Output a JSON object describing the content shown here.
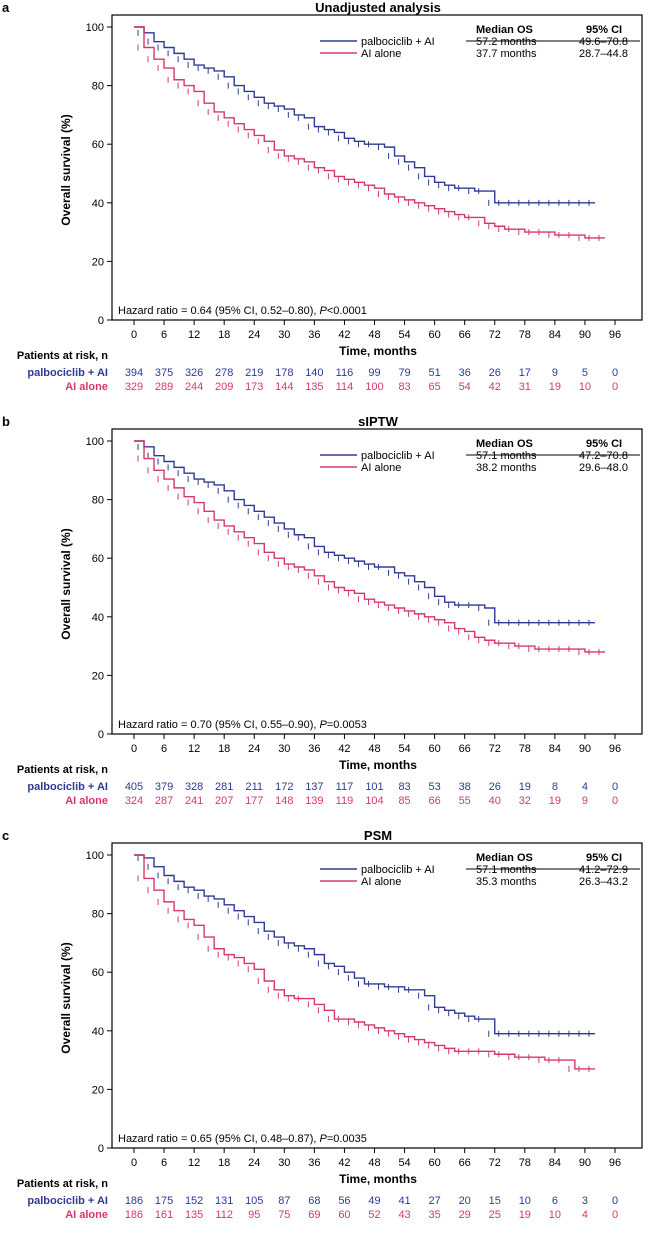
{
  "colors": {
    "palbo": "#2e3b93",
    "ai": "#d6386b",
    "axis": "#000000"
  },
  "common": {
    "xlabel": "Time, months",
    "ylabel": "Overall survival (%)",
    "x_ticks": [
      0,
      6,
      12,
      18,
      24,
      30,
      36,
      42,
      48,
      54,
      60,
      66,
      72,
      78,
      84,
      90,
      96
    ],
    "y_ticks": [
      0,
      20,
      40,
      60,
      80,
      100
    ],
    "risk_header": "Patients at risk, n",
    "table_headers": [
      "Median OS",
      "95% CI"
    ],
    "series_names": [
      "palbociclib + AI",
      "AI alone"
    ]
  },
  "chart_data": [
    {
      "type": "line",
      "letter": "a",
      "title": "Unadjusted analysis",
      "xlabel": "Time, months",
      "ylabel": "Overall survival (%)",
      "xlim": [
        0,
        96
      ],
      "ylim": [
        0,
        100
      ],
      "median_table": [
        {
          "name": "palbociclib + AI",
          "median": "57.2 months",
          "ci": "49.6–70.8"
        },
        {
          "name": "AI alone",
          "median": "37.7 months",
          "ci": "28.7–44.8"
        }
      ],
      "hr_prefix": "Hazard ratio = 0.64 (95% CI, 0.52–0.80), ",
      "hr_p": "P",
      "hr_suffix": "<0.0001",
      "series": [
        {
          "name": "palbociclib + AI",
          "x": [
            0,
            2,
            4,
            6,
            8,
            10,
            12,
            14,
            16,
            18,
            20,
            22,
            24,
            26,
            28,
            30,
            32,
            34,
            36,
            38,
            40,
            42,
            44,
            46,
            48,
            50,
            52,
            54,
            56,
            58,
            60,
            62,
            64,
            66,
            68,
            70,
            72,
            74,
            76,
            78,
            80,
            82,
            84,
            86,
            88,
            90,
            92
          ],
          "y": [
            100,
            98,
            95,
            93,
            91,
            89,
            87,
            86,
            85,
            83,
            80,
            78,
            76,
            74,
            73,
            72,
            70,
            69,
            66,
            65,
            64,
            62,
            61,
            60,
            60,
            59,
            56,
            54,
            52,
            49,
            47,
            46,
            45,
            45,
            44,
            44,
            40,
            40,
            40,
            40,
            40,
            40,
            40,
            40,
            40,
            40,
            40
          ],
          "at_risk": [
            394,
            375,
            326,
            278,
            219,
            178,
            140,
            116,
            99,
            79,
            51,
            36,
            26,
            17,
            9,
            5,
            0
          ]
        },
        {
          "name": "AI alone",
          "x": [
            0,
            2,
            4,
            6,
            8,
            10,
            12,
            14,
            16,
            18,
            20,
            22,
            24,
            26,
            28,
            30,
            32,
            34,
            36,
            38,
            40,
            42,
            44,
            46,
            48,
            50,
            52,
            54,
            56,
            58,
            60,
            62,
            64,
            66,
            68,
            70,
            72,
            74,
            76,
            78,
            80,
            82,
            84,
            86,
            88,
            90,
            92,
            94
          ],
          "y": [
            100,
            93,
            89,
            86,
            82,
            80,
            78,
            74,
            71,
            69,
            67,
            65,
            63,
            61,
            58,
            56,
            55,
            54,
            52,
            51,
            49,
            48,
            47,
            46,
            45,
            43,
            42,
            41,
            40,
            39,
            38,
            37,
            36,
            35,
            35,
            33,
            32,
            31,
            31,
            30,
            30,
            30,
            29,
            29,
            29,
            28,
            28,
            28
          ],
          "at_risk": [
            329,
            289,
            244,
            209,
            173,
            144,
            135,
            114,
            100,
            83,
            65,
            54,
            42,
            31,
            19,
            10,
            0
          ]
        }
      ]
    },
    {
      "type": "line",
      "letter": "b",
      "title": "sIPTW",
      "xlabel": "Time, months",
      "ylabel": "Overall survival (%)",
      "xlim": [
        0,
        96
      ],
      "ylim": [
        0,
        100
      ],
      "median_table": [
        {
          "name": "palbociclib + AI",
          "median": "57.1 months",
          "ci": "47.2–70.8"
        },
        {
          "name": "AI alone",
          "median": "38.2 months",
          "ci": "29.6–48.0"
        }
      ],
      "hr_prefix": "Hazard ratio = 0.70 (95% CI, 0.55–0.90), ",
      "hr_p": "P",
      "hr_suffix": "=0.0053",
      "series": [
        {
          "name": "palbociclib + AI",
          "x": [
            0,
            2,
            4,
            6,
            8,
            10,
            12,
            14,
            16,
            18,
            20,
            22,
            24,
            26,
            28,
            30,
            32,
            34,
            36,
            38,
            40,
            42,
            44,
            46,
            48,
            50,
            52,
            54,
            56,
            58,
            60,
            62,
            64,
            66,
            68,
            70,
            72,
            74,
            76,
            78,
            80,
            82,
            84,
            86,
            88,
            90,
            92
          ],
          "y": [
            100,
            98,
            95,
            93,
            91,
            89,
            87,
            86,
            85,
            83,
            80,
            78,
            76,
            74,
            72,
            70,
            68,
            67,
            64,
            62,
            61,
            60,
            59,
            58,
            57,
            57,
            55,
            54,
            52,
            50,
            47,
            45,
            44,
            44,
            44,
            43,
            38,
            38,
            38,
            38,
            38,
            38,
            38,
            38,
            38,
            38,
            38
          ],
          "at_risk": [
            405,
            379,
            328,
            281,
            211,
            172,
            137,
            117,
            101,
            83,
            53,
            38,
            26,
            19,
            8,
            4,
            0
          ]
        },
        {
          "name": "AI alone",
          "x": [
            0,
            2,
            4,
            6,
            8,
            10,
            12,
            14,
            16,
            18,
            20,
            22,
            24,
            26,
            28,
            30,
            32,
            34,
            36,
            38,
            40,
            42,
            44,
            46,
            48,
            50,
            52,
            54,
            56,
            58,
            60,
            62,
            64,
            66,
            68,
            70,
            72,
            74,
            76,
            78,
            80,
            82,
            84,
            86,
            88,
            90,
            92,
            94
          ],
          "y": [
            100,
            94,
            90,
            87,
            84,
            81,
            79,
            76,
            73,
            71,
            69,
            67,
            65,
            62,
            60,
            58,
            57,
            56,
            54,
            52,
            50,
            49,
            48,
            46,
            45,
            44,
            43,
            42,
            41,
            40,
            39,
            38,
            36,
            35,
            33,
            32,
            31,
            31,
            30,
            30,
            29,
            29,
            29,
            29,
            29,
            28,
            28,
            28
          ],
          "at_risk": [
            324,
            287,
            241,
            207,
            177,
            148,
            139,
            119,
            104,
            85,
            66,
            55,
            40,
            32,
            19,
            9,
            0
          ]
        }
      ]
    },
    {
      "type": "line",
      "letter": "c",
      "title": "PSM",
      "xlabel": "Time, months",
      "ylabel": "Overall survival (%)",
      "xlim": [
        0,
        96
      ],
      "ylim": [
        0,
        100
      ],
      "median_table": [
        {
          "name": "palbociclib + AI",
          "median": "57.1 months",
          "ci": "41.2–72.9"
        },
        {
          "name": "AI alone",
          "median": "35.3 months",
          "ci": "26.3–43.2"
        }
      ],
      "hr_prefix": "Hazard ratio = 0.65 (95% CI, 0.48–0.87), ",
      "hr_p": "P",
      "hr_suffix": "=0.0035",
      "series": [
        {
          "name": "palbociclib + AI",
          "x": [
            0,
            2,
            4,
            6,
            8,
            10,
            12,
            14,
            16,
            18,
            20,
            22,
            24,
            26,
            28,
            30,
            32,
            34,
            36,
            38,
            40,
            42,
            44,
            46,
            48,
            50,
            52,
            54,
            56,
            58,
            60,
            62,
            64,
            66,
            68,
            70,
            72,
            74,
            76,
            78,
            80,
            82,
            84,
            86,
            88,
            90,
            92
          ],
          "y": [
            100,
            99,
            96,
            93,
            91,
            89,
            88,
            86,
            85,
            83,
            81,
            79,
            77,
            74,
            72,
            70,
            69,
            68,
            66,
            63,
            62,
            60,
            58,
            56,
            56,
            55,
            55,
            54,
            54,
            52,
            48,
            47,
            46,
            45,
            44,
            44,
            39,
            39,
            39,
            39,
            39,
            39,
            39,
            39,
            39,
            39,
            39
          ],
          "at_risk": [
            186,
            175,
            152,
            131,
            105,
            87,
            68,
            56,
            49,
            41,
            27,
            20,
            15,
            10,
            6,
            3,
            0
          ]
        },
        {
          "name": "AI alone",
          "x": [
            0,
            2,
            4,
            6,
            8,
            10,
            12,
            14,
            16,
            18,
            20,
            22,
            24,
            26,
            28,
            30,
            32,
            34,
            36,
            38,
            40,
            42,
            44,
            46,
            48,
            50,
            52,
            54,
            56,
            58,
            60,
            62,
            64,
            66,
            68,
            70,
            72,
            74,
            76,
            78,
            80,
            82,
            84,
            86,
            88,
            90,
            92
          ],
          "y": [
            100,
            92,
            88,
            84,
            81,
            78,
            76,
            72,
            68,
            66,
            65,
            63,
            61,
            57,
            54,
            52,
            51,
            51,
            49,
            47,
            44,
            44,
            43,
            42,
            41,
            40,
            39,
            38,
            37,
            36,
            35,
            34,
            33,
            33,
            33,
            33,
            32,
            32,
            31,
            31,
            31,
            30,
            30,
            30,
            27,
            27,
            27
          ],
          "at_risk": [
            186,
            161,
            135,
            112,
            95,
            75,
            69,
            60,
            52,
            43,
            35,
            29,
            25,
            19,
            10,
            4,
            0
          ]
        }
      ]
    }
  ]
}
